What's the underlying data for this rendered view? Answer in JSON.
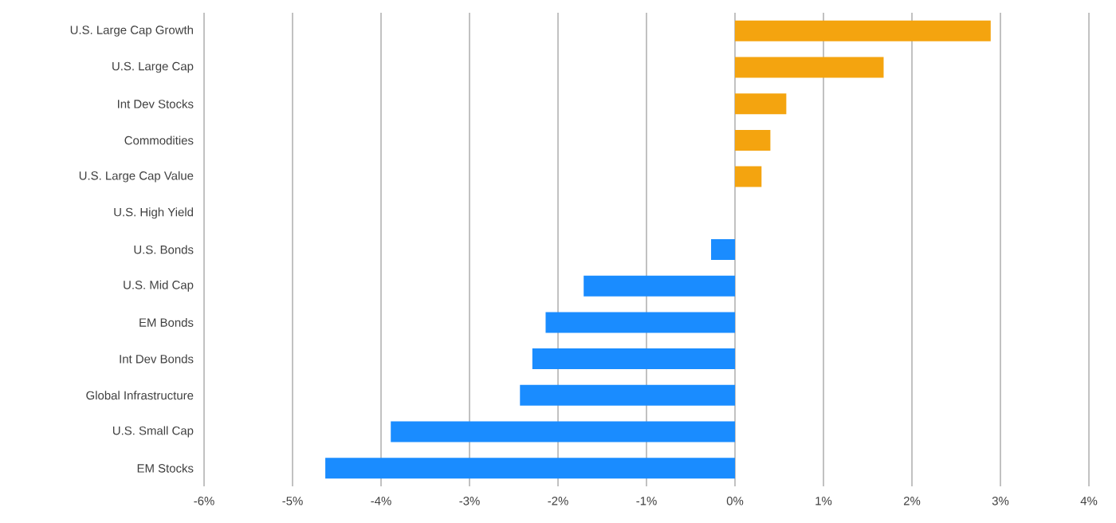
{
  "chart_data": {
    "type": "bar",
    "orientation": "horizontal",
    "categories": [
      "U.S. Large Cap Growth",
      "U.S. Large Cap",
      "Int Dev Stocks",
      "Commodities",
      "U.S. Large Cap Value",
      "U.S. High Yield",
      "U.S. Bonds",
      "U.S. Mid Cap",
      "EM Bonds",
      "Int Dev Bonds",
      "Global Infrastructure",
      "U.S. Small Cap",
      "EM Stocks"
    ],
    "values": [
      2.89,
      1.68,
      0.58,
      0.4,
      0.3,
      0,
      -0.27,
      -1.71,
      -2.14,
      -2.29,
      -2.43,
      -3.89,
      -4.63
    ],
    "colors": [
      "#f4a40f",
      "#f4a40f",
      "#f4a40f",
      "#f4a40f",
      "#f4a40f",
      "#f4a40f",
      "#1a8cff",
      "#1a8cff",
      "#1a8cff",
      "#1a8cff",
      "#1a8cff",
      "#1a8cff",
      "#1a8cff"
    ],
    "xlim": [
      -6,
      4
    ],
    "xticks": [
      {
        "value": -6,
        "label": "-6%"
      },
      {
        "value": -5,
        "label": "-5%"
      },
      {
        "value": -4,
        "label": "-4%"
      },
      {
        "value": -3,
        "label": "-3%"
      },
      {
        "value": -2,
        "label": "-2%"
      },
      {
        "value": -1,
        "label": "-1%"
      },
      {
        "value": 0,
        "label": "0%"
      },
      {
        "value": 1,
        "label": "1%"
      },
      {
        "value": 2,
        "label": "2%"
      },
      {
        "value": 3,
        "label": "3%"
      },
      {
        "value": 4,
        "label": "4%"
      }
    ],
    "grid": "x"
  }
}
